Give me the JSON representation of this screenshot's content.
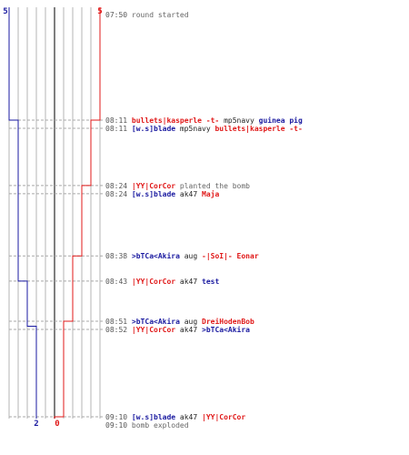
{
  "colors": {
    "team_blue": "#1a1aa0",
    "team_red": "#e01818",
    "grid": "#b4b4b4",
    "center_line": "#555555",
    "dashed": "#a8a8a8",
    "timestamp": "#555555"
  },
  "score": {
    "blue_start": "5",
    "red_start": "5",
    "blue_end": "2",
    "red_end": "0"
  },
  "chart_data": {
    "type": "line",
    "x_unit": "time (mm:ss)",
    "max_players": 5,
    "series": [
      {
        "team": "blue",
        "points": [
          {
            "time": "07:50",
            "alive": 5
          },
          {
            "time": "08:11",
            "alive": 4
          },
          {
            "time": "08:43",
            "alive": 3
          },
          {
            "time": "08:52",
            "alive": 2
          },
          {
            "time": "09:10",
            "alive": 2
          }
        ]
      },
      {
        "team": "red",
        "points": [
          {
            "time": "07:50",
            "alive": 5
          },
          {
            "time": "08:11",
            "alive": 4
          },
          {
            "time": "08:24",
            "alive": 3
          },
          {
            "time": "08:38",
            "alive": 2
          },
          {
            "time": "08:51",
            "alive": 1
          },
          {
            "time": "09:10",
            "alive": 0
          }
        ]
      }
    ]
  },
  "events": [
    {
      "time": "07:50",
      "type": "info",
      "text": "round started"
    },
    {
      "time": "08:11",
      "type": "kill",
      "killer": "bullets|kasperle -t-",
      "killer_team": "red",
      "weapon": "mp5navy",
      "victim": "guinea pig",
      "victim_team": "blue"
    },
    {
      "time": "08:11",
      "type": "kill",
      "killer": "[w.s]blade",
      "killer_team": "blue",
      "weapon": "mp5navy",
      "victim": "bullets|kasperle -t-",
      "victim_team": "red"
    },
    {
      "time": "08:24",
      "type": "info_player",
      "player": "|YY|CorCor",
      "player_team": "red",
      "text": "planted the bomb"
    },
    {
      "time": "08:24",
      "type": "kill",
      "killer": "[w.s]blade",
      "killer_team": "blue",
      "weapon": "ak47",
      "victim": "Maja",
      "victim_team": "red"
    },
    {
      "time": "08:38",
      "type": "kill",
      "killer": ">bTCa<Akira",
      "killer_team": "blue",
      "weapon": "aug",
      "victim": "-|SoI|- Eonar",
      "victim_team": "red"
    },
    {
      "time": "08:43",
      "type": "kill",
      "killer": "|YY|CorCor",
      "killer_team": "red",
      "weapon": "ak47",
      "victim": "test",
      "victim_team": "blue"
    },
    {
      "time": "08:51",
      "type": "kill",
      "killer": ">bTCa<Akira",
      "killer_team": "blue",
      "weapon": "aug",
      "victim": "DreiHodenBob",
      "victim_team": "red"
    },
    {
      "time": "08:52",
      "type": "kill",
      "killer": "|YY|CorCor",
      "killer_team": "red",
      "weapon": "ak47",
      "victim": ">bTCa<Akira",
      "victim_team": "blue"
    },
    {
      "time": "09:10",
      "type": "kill",
      "killer": "[w.s]blade",
      "killer_team": "blue",
      "weapon": "ak47",
      "victim": "|YY|CorCor",
      "victim_team": "red"
    },
    {
      "time": "09:10",
      "type": "info",
      "text": "bomb exploded"
    }
  ]
}
